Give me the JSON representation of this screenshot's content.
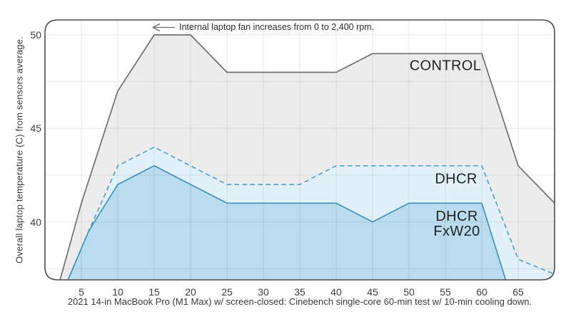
{
  "chart_data": {
    "type": "area",
    "title": "",
    "ylabel": "Overall laptop temperature (C) from sensors average.",
    "caption": "2021 14-in MacBook Pro (M1 Max) w/ screen-closed: Cinebench single-core 60-min test w/ 10-min cooling down.",
    "annotation": {
      "text": "Internal laptop fan increases from 0 to 2,400 rpm.",
      "arrow": "left",
      "arrow_tip_x": 15,
      "arrow_tip_y": 50.4
    },
    "xlim": [
      0,
      70
    ],
    "ylim": [
      36.9,
      50.8
    ],
    "xticks": [
      5,
      10,
      15,
      20,
      25,
      30,
      35,
      40,
      45,
      50,
      55,
      60,
      65
    ],
    "yticks": [
      40,
      45,
      50
    ],
    "ygrid": [
      37.5,
      40,
      42.5,
      45,
      47.5,
      50
    ],
    "grid_on": true,
    "legend_position": "inline-labels",
    "colors": {
      "plot_border": "#4d4d4d",
      "gridline": "rgba(0,0,0,0.085)",
      "arrow": "#6e6e6e"
    },
    "series": [
      {
        "name": "CONTROL",
        "label": "CONTROL",
        "style": "solid",
        "stroke": "#6f6f6f",
        "fill": "#ececec",
        "points": [
          [
            0,
            34
          ],
          [
            5,
            41
          ],
          [
            10,
            47
          ],
          [
            15,
            50
          ],
          [
            20,
            50
          ],
          [
            25,
            48
          ],
          [
            40,
            48
          ],
          [
            45,
            49
          ],
          [
            60,
            49
          ],
          [
            65,
            43
          ],
          [
            70,
            41
          ]
        ]
      },
      {
        "name": "DHCR",
        "label": "DHCR",
        "style": "dashed",
        "stroke": "#54a3ca",
        "fill": "#e2f0f9",
        "points": [
          [
            0,
            34
          ],
          [
            6,
            39.5
          ],
          [
            10,
            43
          ],
          [
            15,
            44
          ],
          [
            25,
            42
          ],
          [
            35,
            42
          ],
          [
            40,
            43
          ],
          [
            60,
            43
          ],
          [
            65,
            38
          ],
          [
            70,
            37.2
          ]
        ]
      },
      {
        "name": "DHCR FxW20",
        "label": "DHCR\nFxW20",
        "style": "solid",
        "stroke": "#4292bd",
        "fill": "#b9dcee",
        "points": [
          [
            0,
            34
          ],
          [
            6,
            39.5
          ],
          [
            10,
            42
          ],
          [
            15,
            43
          ],
          [
            25,
            41
          ],
          [
            40,
            41
          ],
          [
            45,
            40
          ],
          [
            50,
            41
          ],
          [
            60,
            41
          ],
          [
            64,
            36
          ]
        ]
      }
    ]
  }
}
